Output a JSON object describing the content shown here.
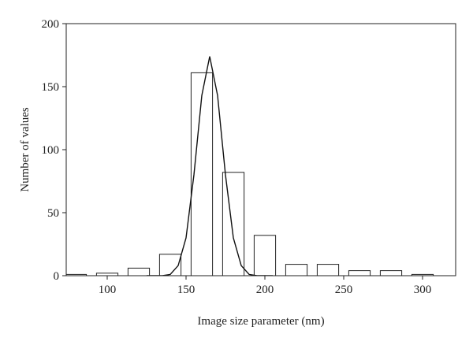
{
  "chart_data": {
    "type": "bar",
    "x_label": "Image size parameter (nm)",
    "y_label": "Number of values",
    "x": [
      80,
      100,
      120,
      140,
      160,
      180,
      200,
      220,
      240,
      260,
      280,
      300
    ],
    "values": [
      1,
      2,
      6,
      17,
      161,
      82,
      32,
      9,
      9,
      4,
      4,
      1
    ],
    "color": "#ffffff",
    "edge_color": "#222222",
    "xlim": [
      74,
      321
    ],
    "ylim": [
      0,
      200
    ],
    "xticks": [
      100,
      150,
      200,
      250,
      300
    ],
    "yticks": [
      0,
      50,
      100,
      150,
      200
    ],
    "fit": {
      "type": "line",
      "color": "#111111",
      "x": [
        125,
        130,
        135,
        140,
        145,
        150,
        155,
        160,
        165,
        170,
        175,
        180,
        185,
        190,
        195,
        200,
        205
      ],
      "values": [
        0,
        0,
        0,
        1,
        8,
        30,
        80,
        143,
        174,
        143,
        80,
        30,
        8,
        1,
        0,
        0,
        0
      ]
    }
  }
}
